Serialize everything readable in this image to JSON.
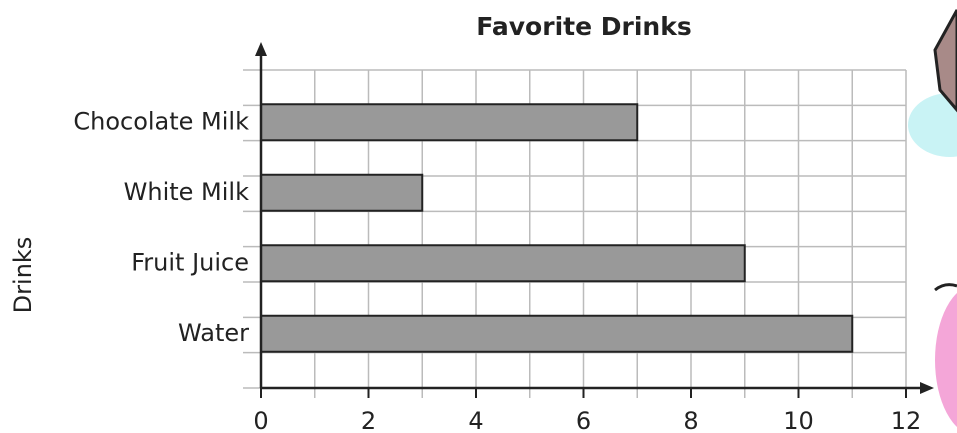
{
  "chart_data": {
    "type": "bar",
    "orientation": "horizontal",
    "title": "Favorite Drinks",
    "y_label": "Drinks",
    "categories": [
      "Chocolate Milk",
      "White Milk",
      "Fruit Juice",
      "Water"
    ],
    "values": [
      7,
      3,
      9,
      11
    ],
    "color": "#999999",
    "xlim": [
      0,
      12
    ],
    "xticks": [
      0,
      2,
      4,
      6,
      8,
      10,
      12
    ],
    "grid": true
  }
}
